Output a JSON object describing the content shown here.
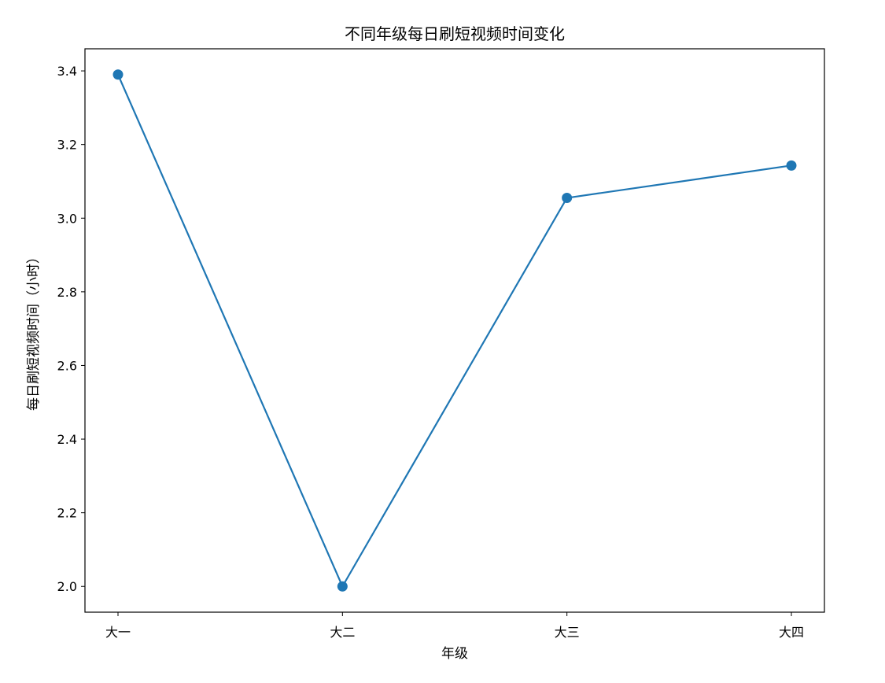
{
  "chart_data": {
    "type": "line",
    "title": "不同年级每日刷短视频时间变化",
    "xlabel": "年级",
    "ylabel": "每日刷短视频时间（小时）",
    "categories": [
      "大一",
      "大二",
      "大三",
      "大四"
    ],
    "series": [
      {
        "values": [
          3.39,
          2.0,
          3.055,
          3.143
        ]
      }
    ],
    "ylim": [
      1.93,
      3.46
    ],
    "yticks": [
      2.0,
      2.2,
      2.4,
      2.6,
      2.8,
      3.0,
      3.2,
      3.4
    ],
    "ytick_labels": [
      "2.0",
      "2.2",
      "2.4",
      "2.6",
      "2.8",
      "3.0",
      "3.2",
      "3.4"
    ],
    "grid": false,
    "colors": {
      "line": "#1f77b4",
      "marker": "#1f77b4",
      "axes": "#000000"
    }
  }
}
